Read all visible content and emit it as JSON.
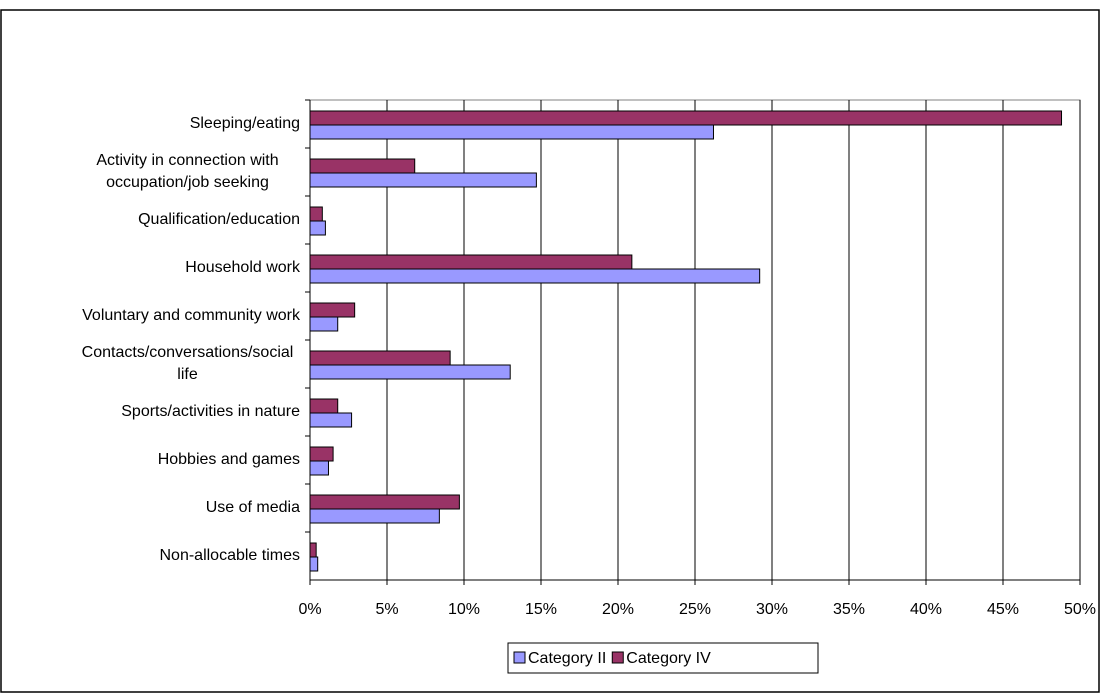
{
  "chart_data": {
    "type": "hbar",
    "categories": [
      "Sleeping/eating",
      "Activity in connection with occupation/job seeking",
      "Qualification/education",
      "Household work",
      "Voluntary and community work",
      "Contacts/conversations/social life",
      "Sports/activities in nature",
      "Hobbies and games",
      "Use of media",
      "Non-allocable times"
    ],
    "series": [
      {
        "name": "Category II",
        "color": "#9999ff",
        "values": [
          26.2,
          14.7,
          1.0,
          29.2,
          1.8,
          13.0,
          2.7,
          1.2,
          8.4,
          0.5
        ]
      },
      {
        "name": "Category IV",
        "color": "#993366",
        "values": [
          48.8,
          6.8,
          0.8,
          20.9,
          2.9,
          9.1,
          1.8,
          1.5,
          9.7,
          0.4
        ]
      }
    ],
    "xlim": [
      0,
      50
    ],
    "xticks": [
      {
        "value": 0,
        "label": "0%"
      },
      {
        "value": 5,
        "label": "5%"
      },
      {
        "value": 10,
        "label": "10%"
      },
      {
        "value": 15,
        "label": "15%"
      },
      {
        "value": 20,
        "label": "20%"
      },
      {
        "value": 25,
        "label": "25%"
      },
      {
        "value": 30,
        "label": "30%"
      },
      {
        "value": 35,
        "label": "35%"
      },
      {
        "value": 40,
        "label": "40%"
      },
      {
        "value": 45,
        "label": "45%"
      },
      {
        "value": 50,
        "label": "50%"
      }
    ],
    "grid": true,
    "legend": "bottom"
  }
}
